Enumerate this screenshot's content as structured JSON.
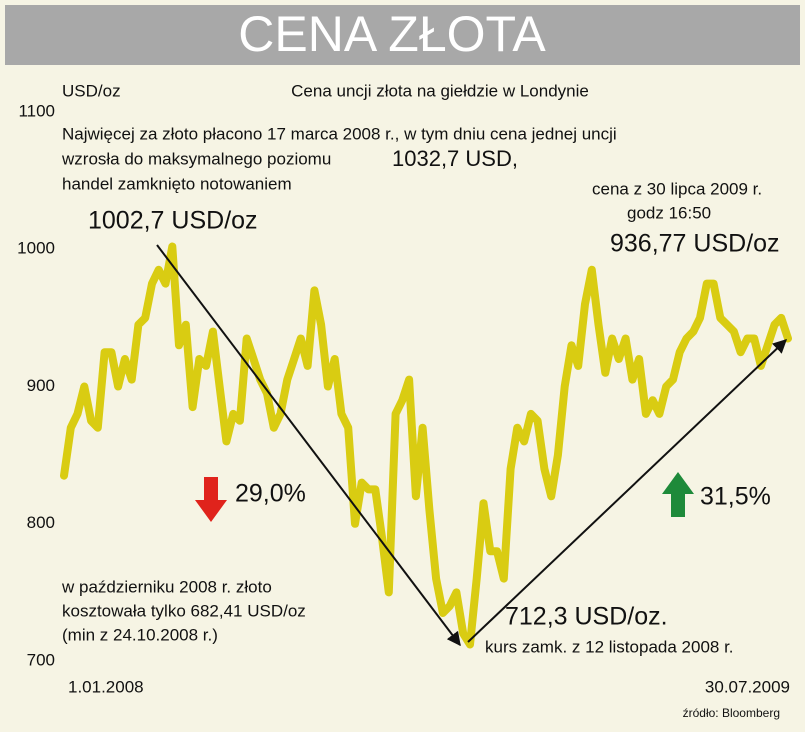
{
  "chart_data": {
    "type": "line",
    "title": "CENA ZŁOTA",
    "subtitle": "Cena uncji złota na giełdzie w Londynie",
    "y_label": "USD/oz",
    "source": "źródło: Bloomberg",
    "annotations": [
      "Najwięcej za złoto płacono 17 marca 2008 r., w tym dniu cena jednej uncji",
      "wzrosła do maksymalnego poziomu",
      "1032,7 USD,",
      "handel zamknięto notowaniem",
      "1002,7 USD/oz",
      "cena z 30 lipca 2009 r.",
      "godz 16:50",
      "936,77 USD/oz",
      "29,0%",
      "31,5%",
      "w październiku 2008 r. złoto",
      "kosztowała tylko 682,41 USD/oz",
      "(min z 24.10.2008 r.)",
      "712,3 USD/oz.",
      "kurs zamk. z 12 listopada 2008 r."
    ],
    "categories": [
      "1.01.2008",
      null,
      null,
      null,
      null,
      null,
      null,
      null,
      null,
      null,
      null,
      null,
      null,
      null,
      null,
      null,
      null,
      null,
      null,
      null,
      null,
      null,
      null,
      null,
      null,
      null,
      null,
      null,
      null,
      null,
      null,
      null,
      null,
      null,
      null,
      null,
      null,
      null,
      null,
      null,
      null,
      null,
      null,
      null,
      null,
      null,
      null,
      null,
      null,
      null,
      null,
      null,
      null,
      null,
      null,
      null,
      null,
      null,
      null,
      null,
      null,
      null,
      null,
      null,
      null,
      null,
      null,
      null,
      null,
      null,
      null,
      null,
      null,
      null,
      null,
      null,
      null,
      null,
      null,
      null,
      null,
      null,
      null,
      null,
      null,
      null,
      null,
      null,
      null,
      null,
      null,
      null,
      null,
      null,
      null,
      null,
      null,
      null,
      null,
      null,
      null,
      null,
      null,
      null,
      null,
      null,
      null,
      "30.07.2009"
    ],
    "series": [
      {
        "name": "Cena złota",
        "color": "#d9cc12",
        "values": [
          835,
          870,
          880,
          900,
          875,
          870,
          925,
          925,
          900,
          920,
          905,
          945,
          950,
          975,
          985,
          975,
          1002,
          930,
          945,
          885,
          920,
          915,
          940,
          900,
          860,
          880,
          875,
          935,
          920,
          905,
          895,
          870,
          880,
          905,
          920,
          935,
          915,
          970,
          945,
          900,
          920,
          880,
          870,
          800,
          830,
          825,
          825,
          790,
          750,
          880,
          890,
          905,
          820,
          870,
          810,
          760,
          735,
          740,
          750,
          720,
          712,
          760,
          815,
          780,
          780,
          760,
          840,
          870,
          860,
          880,
          875,
          840,
          820,
          850,
          900,
          930,
          915,
          960,
          985,
          945,
          910,
          935,
          920,
          935,
          905,
          920,
          880,
          890,
          880,
          900,
          905,
          925,
          935,
          940,
          950,
          975,
          975,
          950,
          945,
          940,
          925,
          935,
          935,
          915,
          930,
          945,
          950,
          935
        ]
      }
    ],
    "ylim": [
      700,
      1100
    ],
    "yticks": [
      700,
      800,
      900,
      1000,
      1100
    ],
    "grid": false
  }
}
